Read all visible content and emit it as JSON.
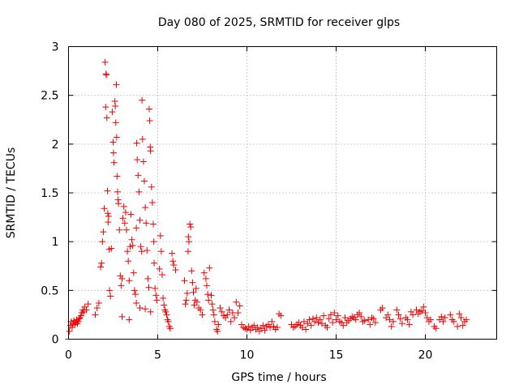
{
  "chart_data": {
    "type": "scatter",
    "title": "Day 080 of 2025, SRMTID for receiver glps",
    "xlabel": "GPS time / hours",
    "ylabel": "SRMTID / TECUs",
    "xlim": [
      0,
      24
    ],
    "ylim": [
      0,
      3
    ],
    "xticks": [
      0,
      5,
      10,
      15,
      20
    ],
    "xtick_labels": [
      "0",
      "5",
      "10",
      "15",
      "20"
    ],
    "yticks": [
      0,
      0.5,
      1,
      1.5,
      2,
      2.5,
      3
    ],
    "ytick_labels": [
      "0",
      "0.5",
      "1",
      "1.5",
      "2",
      "2.5",
      "3"
    ],
    "grid": true,
    "marker": "+",
    "color": "#ee0000",
    "series": [
      {
        "name": "SRMTID",
        "points": [
          [
            0.05,
            0.08
          ],
          [
            0.1,
            0.14
          ],
          [
            0.15,
            0.18
          ],
          [
            0.2,
            0.12
          ],
          [
            0.25,
            0.16
          ],
          [
            0.3,
            0.19
          ],
          [
            0.35,
            0.15
          ],
          [
            0.4,
            0.17
          ],
          [
            0.45,
            0.2
          ],
          [
            0.5,
            0.16
          ],
          [
            0.55,
            0.18
          ],
          [
            0.6,
            0.21
          ],
          [
            0.65,
            0.22
          ],
          [
            0.7,
            0.24
          ],
          [
            0.75,
            0.27
          ],
          [
            0.8,
            0.3
          ],
          [
            0.85,
            0.28
          ],
          [
            0.9,
            0.33
          ],
          [
            1.0,
            0.3
          ],
          [
            1.1,
            0.36
          ],
          [
            1.5,
            0.25
          ],
          [
            1.6,
            0.32
          ],
          [
            1.7,
            0.37
          ],
          [
            1.8,
            0.74
          ],
          [
            1.85,
            0.78
          ],
          [
            1.9,
            1.0
          ],
          [
            1.95,
            1.1
          ],
          [
            2.0,
            1.34
          ],
          [
            2.05,
            2.84
          ],
          [
            2.08,
            2.38
          ],
          [
            2.1,
            2.72
          ],
          [
            2.12,
            2.71
          ],
          [
            2.15,
            2.27
          ],
          [
            2.18,
            1.52
          ],
          [
            2.2,
            1.29
          ],
          [
            2.22,
            1.2
          ],
          [
            2.25,
            1.26
          ],
          [
            2.28,
            0.92
          ],
          [
            2.3,
            0.5
          ],
          [
            2.35,
            0.44
          ],
          [
            2.4,
            0.93
          ],
          [
            2.45,
            2.33
          ],
          [
            2.5,
            2.02
          ],
          [
            2.52,
            1.91
          ],
          [
            2.55,
            1.81
          ],
          [
            2.6,
            2.44
          ],
          [
            2.62,
            2.39
          ],
          [
            2.65,
            2.22
          ],
          [
            2.68,
            2.61
          ],
          [
            2.7,
            2.07
          ],
          [
            2.72,
            1.67
          ],
          [
            2.75,
            1.51
          ],
          [
            2.78,
            1.43
          ],
          [
            2.8,
            1.39
          ],
          [
            2.85,
            1.12
          ],
          [
            2.9,
            0.65
          ],
          [
            2.95,
            0.55
          ],
          [
            3.0,
            0.62
          ],
          [
            3.05,
            1.24
          ],
          [
            3.1,
            1.36
          ],
          [
            3.15,
            1.19
          ],
          [
            3.2,
            1.3
          ],
          [
            3.25,
            1.12
          ],
          [
            3.3,
            0.9
          ],
          [
            3.35,
            0.8
          ],
          [
            3.4,
            0.6
          ],
          [
            3.45,
            0.95
          ],
          [
            3.5,
            1.28
          ],
          [
            3.55,
            1.02
          ],
          [
            3.6,
            0.96
          ],
          [
            3.65,
            0.68
          ],
          [
            3.7,
            0.5
          ],
          [
            3.75,
            0.46
          ],
          [
            3.8,
            1.14
          ],
          [
            3.82,
            2.01
          ],
          [
            3.85,
            1.84
          ],
          [
            3.9,
            1.68
          ],
          [
            3.95,
            1.51
          ],
          [
            4.0,
            1.22
          ],
          [
            4.05,
            0.95
          ],
          [
            4.1,
            0.9
          ],
          [
            4.12,
            2.45
          ],
          [
            4.15,
            2.05
          ],
          [
            4.2,
            1.82
          ],
          [
            4.25,
            1.62
          ],
          [
            4.3,
            1.35
          ],
          [
            4.35,
            1.19
          ],
          [
            4.4,
            0.91
          ],
          [
            4.45,
            0.62
          ],
          [
            4.5,
            0.53
          ],
          [
            4.52,
            2.36
          ],
          [
            4.55,
            2.24
          ],
          [
            4.58,
            1.97
          ],
          [
            4.6,
            1.93
          ],
          [
            4.65,
            1.56
          ],
          [
            4.7,
            1.4
          ],
          [
            4.75,
            1.18
          ],
          [
            4.78,
            1.0
          ],
          [
            4.8,
            0.78
          ],
          [
            4.85,
            0.52
          ],
          [
            4.9,
            0.45
          ],
          [
            4.95,
            0.4
          ],
          [
            3.0,
            0.23
          ],
          [
            3.4,
            0.2
          ],
          [
            3.8,
            0.37
          ],
          [
            4.0,
            0.32
          ],
          [
            4.3,
            0.31
          ],
          [
            4.6,
            0.28
          ],
          [
            5.1,
            0.72
          ],
          [
            5.15,
            1.06
          ],
          [
            5.2,
            0.9
          ],
          [
            5.25,
            0.66
          ],
          [
            5.3,
            0.42
          ],
          [
            5.35,
            0.35
          ],
          [
            5.4,
            0.3
          ],
          [
            5.45,
            0.28
          ],
          [
            5.5,
            0.25
          ],
          [
            5.55,
            0.2
          ],
          [
            5.6,
            0.18
          ],
          [
            5.65,
            0.13
          ],
          [
            5.7,
            0.11
          ],
          [
            5.8,
            0.88
          ],
          [
            5.85,
            0.8
          ],
          [
            5.9,
            0.76
          ],
          [
            6.0,
            0.71
          ],
          [
            6.5,
            0.6
          ],
          [
            6.55,
            0.36
          ],
          [
            6.6,
            0.4
          ],
          [
            6.65,
            0.47
          ],
          [
            6.7,
            0.9
          ],
          [
            6.72,
            1.05
          ],
          [
            6.75,
            1.0
          ],
          [
            6.8,
            1.18
          ],
          [
            6.85,
            1.15
          ],
          [
            6.9,
            0.7
          ],
          [
            6.95,
            0.58
          ],
          [
            7.0,
            0.48
          ],
          [
            7.05,
            0.35
          ],
          [
            7.1,
            0.4
          ],
          [
            7.15,
            0.52
          ],
          [
            7.2,
            0.38
          ],
          [
            7.3,
            0.32
          ],
          [
            7.4,
            0.3
          ],
          [
            7.5,
            0.25
          ],
          [
            7.6,
            0.68
          ],
          [
            7.7,
            0.62
          ],
          [
            7.75,
            0.55
          ],
          [
            7.8,
            0.46
          ],
          [
            7.85,
            0.4
          ],
          [
            7.9,
            0.73
          ],
          [
            8.0,
            0.45
          ],
          [
            8.05,
            0.36
          ],
          [
            8.1,
            0.3
          ],
          [
            8.15,
            0.25
          ],
          [
            8.2,
            0.18
          ],
          [
            8.3,
            0.1
          ],
          [
            8.35,
            0.08
          ],
          [
            8.4,
            0.15
          ],
          [
            8.5,
            0.32
          ],
          [
            8.6,
            0.28
          ],
          [
            8.7,
            0.24
          ],
          [
            8.8,
            0.22
          ],
          [
            8.9,
            0.25
          ],
          [
            9.0,
            0.3
          ],
          [
            9.1,
            0.18
          ],
          [
            9.2,
            0.27
          ],
          [
            9.3,
            0.22
          ],
          [
            9.4,
            0.38
          ],
          [
            9.5,
            0.27
          ],
          [
            9.6,
            0.34
          ],
          [
            9.7,
            0.15
          ],
          [
            9.8,
            0.12
          ],
          [
            9.9,
            0.11
          ],
          [
            10.0,
            0.1
          ],
          [
            10.1,
            0.13
          ],
          [
            10.2,
            0.09
          ],
          [
            10.3,
            0.12
          ],
          [
            10.4,
            0.14
          ],
          [
            10.5,
            0.1
          ],
          [
            10.6,
            0.12
          ],
          [
            10.7,
            0.08
          ],
          [
            10.8,
            0.11
          ],
          [
            10.9,
            0.14
          ],
          [
            11.0,
            0.09
          ],
          [
            11.1,
            0.13
          ],
          [
            11.2,
            0.15
          ],
          [
            11.3,
            0.12
          ],
          [
            11.4,
            0.18
          ],
          [
            11.5,
            0.13
          ],
          [
            11.6,
            0.1
          ],
          [
            11.7,
            0.12
          ],
          [
            11.8,
            0.26
          ],
          [
            11.9,
            0.24
          ],
          [
            12.5,
            0.15
          ],
          [
            12.6,
            0.12
          ],
          [
            12.7,
            0.13
          ],
          [
            12.8,
            0.15
          ],
          [
            12.9,
            0.17
          ],
          [
            13.0,
            0.14
          ],
          [
            13.1,
            0.12
          ],
          [
            13.2,
            0.18
          ],
          [
            13.3,
            0.1
          ],
          [
            13.4,
            0.16
          ],
          [
            13.5,
            0.2
          ],
          [
            13.6,
            0.14
          ],
          [
            13.7,
            0.21
          ],
          [
            13.8,
            0.18
          ],
          [
            13.9,
            0.22
          ],
          [
            14.0,
            0.17
          ],
          [
            14.1,
            0.2
          ],
          [
            14.2,
            0.16
          ],
          [
            14.3,
            0.24
          ],
          [
            14.4,
            0.14
          ],
          [
            14.5,
            0.12
          ],
          [
            14.6,
            0.21
          ],
          [
            14.7,
            0.25
          ],
          [
            14.8,
            0.17
          ],
          [
            14.9,
            0.27
          ],
          [
            15.0,
            0.2
          ],
          [
            15.1,
            0.24
          ],
          [
            15.2,
            0.18
          ],
          [
            15.3,
            0.17
          ],
          [
            15.4,
            0.14
          ],
          [
            15.5,
            0.22
          ],
          [
            15.6,
            0.17
          ],
          [
            15.7,
            0.19
          ],
          [
            15.8,
            0.21
          ],
          [
            15.9,
            0.23
          ],
          [
            16.0,
            0.22
          ],
          [
            16.1,
            0.2
          ],
          [
            16.2,
            0.25
          ],
          [
            16.3,
            0.27
          ],
          [
            16.4,
            0.23
          ],
          [
            16.5,
            0.18
          ],
          [
            16.6,
            0.19
          ],
          [
            16.8,
            0.2
          ],
          [
            16.9,
            0.15
          ],
          [
            17.0,
            0.22
          ],
          [
            17.1,
            0.21
          ],
          [
            17.2,
            0.17
          ],
          [
            17.5,
            0.3
          ],
          [
            17.6,
            0.32
          ],
          [
            17.8,
            0.22
          ],
          [
            17.9,
            0.25
          ],
          [
            18.0,
            0.2
          ],
          [
            18.1,
            0.13
          ],
          [
            18.2,
            0.18
          ],
          [
            18.4,
            0.3
          ],
          [
            18.5,
            0.25
          ],
          [
            18.6,
            0.21
          ],
          [
            18.7,
            0.16
          ],
          [
            18.9,
            0.22
          ],
          [
            19.0,
            0.2
          ],
          [
            19.1,
            0.15
          ],
          [
            19.2,
            0.28
          ],
          [
            19.3,
            0.25
          ],
          [
            19.5,
            0.3
          ],
          [
            19.6,
            0.26
          ],
          [
            19.7,
            0.28
          ],
          [
            19.8,
            0.29
          ],
          [
            19.9,
            0.33
          ],
          [
            20.0,
            0.27
          ],
          [
            20.1,
            0.22
          ],
          [
            20.2,
            0.18
          ],
          [
            20.3,
            0.2
          ],
          [
            20.5,
            0.13
          ],
          [
            20.6,
            0.11
          ],
          [
            20.8,
            0.2
          ],
          [
            20.9,
            0.23
          ],
          [
            21.0,
            0.18
          ],
          [
            21.1,
            0.22
          ],
          [
            21.4,
            0.25
          ],
          [
            21.5,
            0.2
          ],
          [
            21.6,
            0.18
          ],
          [
            21.8,
            0.13
          ],
          [
            21.9,
            0.26
          ],
          [
            22.0,
            0.22
          ],
          [
            22.1,
            0.14
          ],
          [
            22.2,
            0.18
          ],
          [
            22.3,
            0.2
          ]
        ]
      }
    ],
    "zero_band": {
      "x_start": 0.0,
      "x_end": 22.6,
      "y": 0
    }
  }
}
